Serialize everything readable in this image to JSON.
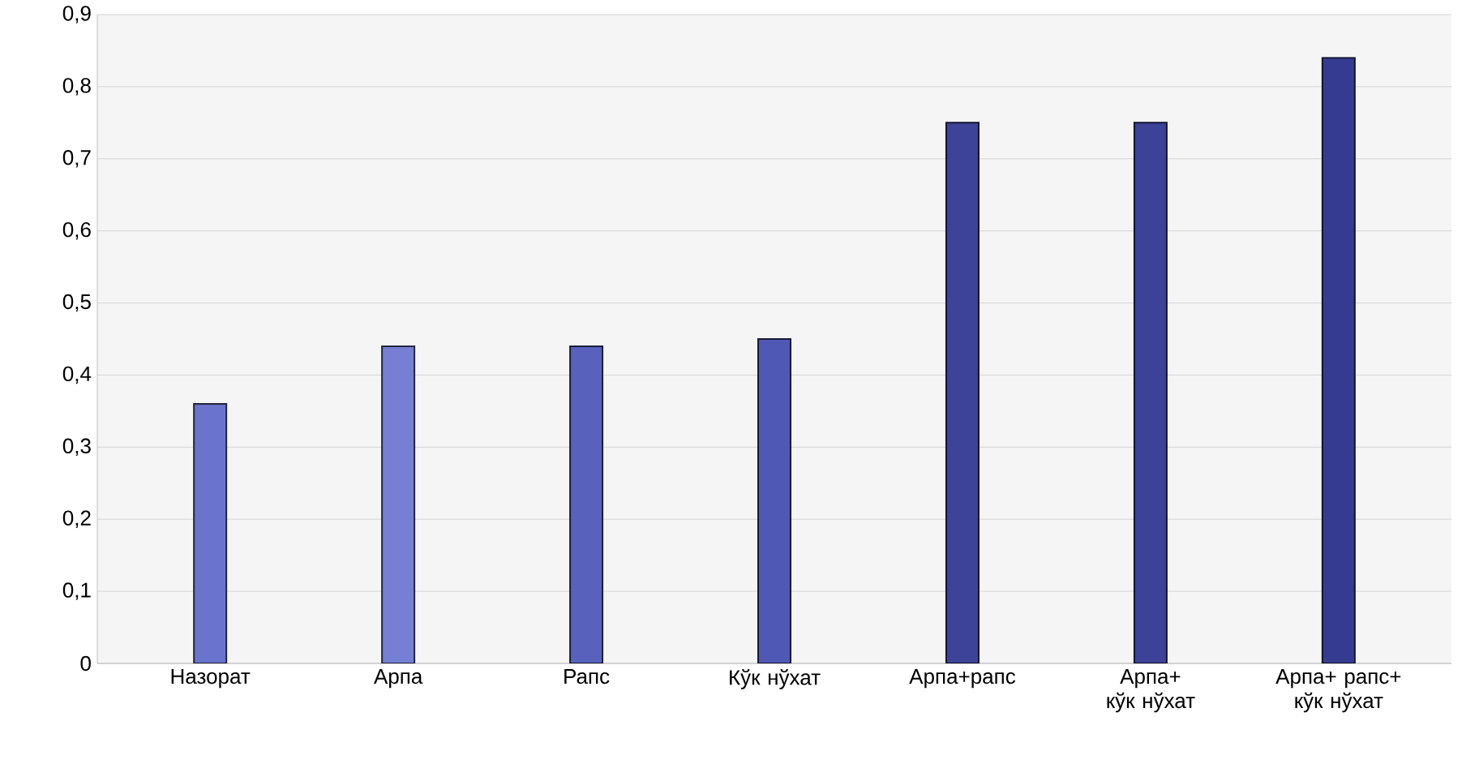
{
  "chart_data": {
    "type": "bar",
    "categories": [
      "Назорат",
      "Арпа",
      "Рапс",
      "Кўк нўхат",
      "Арпа+рапс",
      "Арпа+ кўк нўхат",
      "Арпа+ рапс+ кўк нўхат"
    ],
    "values": [
      0.36,
      0.44,
      0.44,
      0.45,
      0.75,
      0.75,
      0.84
    ],
    "colors": [
      "#6a74cc",
      "#7580d4",
      "#5862bd",
      "#5058b5",
      "#3d4399",
      "#3c4298",
      "#363b92"
    ],
    "ylim": [
      0,
      0.9
    ],
    "yticks": [
      {
        "value": 0,
        "label": "0"
      },
      {
        "value": 0.1,
        "label": "0,1"
      },
      {
        "value": 0.2,
        "label": "0,2"
      },
      {
        "value": 0.3,
        "label": "0,3"
      },
      {
        "value": 0.4,
        "label": "0,4"
      },
      {
        "value": 0.5,
        "label": "0,5"
      },
      {
        "value": 0.6,
        "label": "0,6"
      },
      {
        "value": 0.7,
        "label": "0,7"
      },
      {
        "value": 0.8,
        "label": "0,8"
      },
      {
        "value": 0.9,
        "label": "0,9"
      }
    ],
    "grid": "y"
  }
}
